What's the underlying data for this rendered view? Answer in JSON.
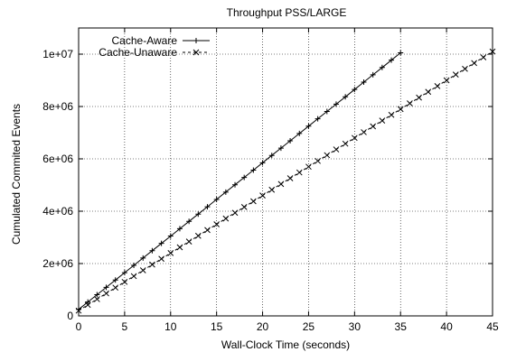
{
  "chart_data": {
    "type": "line",
    "title": "Throughput PSS/LARGE",
    "xlabel": "Wall-Clock Time (seconds)",
    "ylabel": "Cumulated Commited Events",
    "xlim": [
      0,
      45
    ],
    "ylim": [
      0,
      11000000
    ],
    "x_ticks": [
      0,
      5,
      10,
      15,
      20,
      25,
      30,
      35,
      40,
      45
    ],
    "x_tick_labels": [
      "0",
      "5",
      "10",
      "15",
      "20",
      "25",
      "30",
      "35",
      "40",
      "45"
    ],
    "y_ticks": [
      0,
      2000000,
      4000000,
      6000000,
      8000000,
      10000000
    ],
    "y_tick_labels": [
      "0",
      "2e+06",
      "4e+06",
      "6e+06",
      "8e+06",
      "1e+07"
    ],
    "grid": true,
    "legend_position": "top-left",
    "series": [
      {
        "name": "Cache-Aware",
        "marker": "plus",
        "x": [
          0,
          1,
          2,
          3,
          4,
          5,
          6,
          7,
          8,
          9,
          10,
          11,
          12,
          13,
          14,
          15,
          16,
          17,
          18,
          19,
          20,
          21,
          22,
          23,
          24,
          25,
          26,
          27,
          28,
          29,
          30,
          31,
          32,
          33,
          34,
          35
        ],
        "y": [
          250000,
          530000,
          810000,
          1090000,
          1370000,
          1650000,
          1930000,
          2210000,
          2490000,
          2770000,
          3050000,
          3330000,
          3610000,
          3890000,
          4170000,
          4450000,
          4730000,
          5010000,
          5290000,
          5570000,
          5850000,
          6130000,
          6410000,
          6690000,
          6970000,
          7250000,
          7530000,
          7810000,
          8090000,
          8370000,
          8650000,
          8930000,
          9210000,
          9490000,
          9770000,
          10050000
        ]
      },
      {
        "name": "Cache-Unaware",
        "marker": "cross",
        "x": [
          0,
          1,
          2,
          3,
          4,
          5,
          6,
          7,
          8,
          9,
          10,
          11,
          12,
          13,
          14,
          15,
          16,
          17,
          18,
          19,
          20,
          21,
          22,
          23,
          24,
          25,
          26,
          27,
          28,
          29,
          30,
          31,
          32,
          33,
          34,
          35,
          36,
          37,
          38,
          39,
          40,
          41,
          42,
          43,
          44,
          45
        ],
        "y": [
          200000,
          420000,
          640000,
          860000,
          1080000,
          1300000,
          1520000,
          1740000,
          1960000,
          2180000,
          2400000,
          2620000,
          2840000,
          3060000,
          3280000,
          3500000,
          3720000,
          3940000,
          4160000,
          4380000,
          4600000,
          4820000,
          5040000,
          5260000,
          5480000,
          5700000,
          5920000,
          6140000,
          6360000,
          6580000,
          6800000,
          7020000,
          7240000,
          7460000,
          7680000,
          7900000,
          8120000,
          8340000,
          8560000,
          8780000,
          9000000,
          9220000,
          9440000,
          9660000,
          9880000,
          10100000
        ]
      }
    ]
  }
}
